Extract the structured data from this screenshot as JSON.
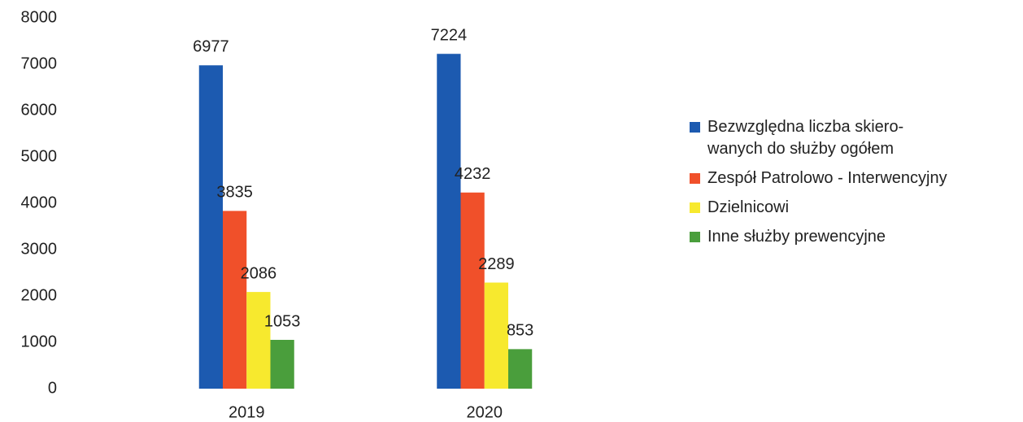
{
  "chart_data": {
    "type": "bar",
    "categories": [
      "2019",
      "2020"
    ],
    "series": [
      {
        "name": "Bezwzględna liczba skiero-\nwanych do służby ogółem",
        "color": "#1c5ab0",
        "values": [
          6977,
          7224
        ]
      },
      {
        "name": "Zespół Patrolowo - Interwencyjny",
        "color": "#f0502a",
        "values": [
          3835,
          4232
        ]
      },
      {
        "name": "Dzielnicowi",
        "color": "#f7e92e",
        "values": [
          2086,
          2289
        ]
      },
      {
        "name": "Inne służby prewencyjne",
        "color": "#4a9e3c",
        "values": [
          1053,
          853
        ]
      }
    ],
    "ylim": [
      0,
      8000
    ],
    "yticks": [
      0,
      1000,
      2000,
      3000,
      4000,
      5000,
      6000,
      7000,
      8000
    ],
    "grid": false,
    "legend": "right"
  }
}
